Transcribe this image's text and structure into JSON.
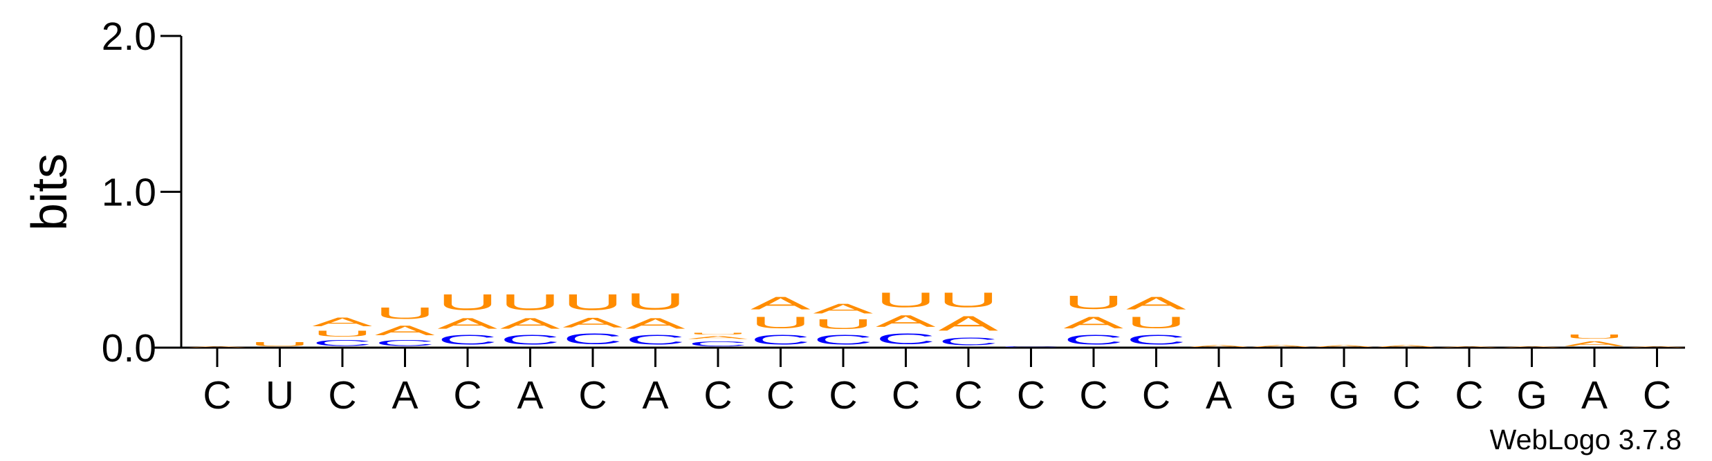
{
  "chart_data": {
    "type": "logo",
    "ylabel": "bits",
    "footer": "WebLogo 3.7.8",
    "ylim": [
      0,
      2
    ],
    "yticks": [
      {
        "value": 0,
        "label": "0.0"
      },
      {
        "value": 1,
        "label": "1.0"
      },
      {
        "value": 2,
        "label": "2.0"
      }
    ],
    "colors": {
      "A": "#ff8c00",
      "U": "#ff8c00",
      "C": "#0000ff"
    },
    "categories": [
      "C",
      "U",
      "C",
      "A",
      "C",
      "A",
      "C",
      "A",
      "C",
      "C",
      "C",
      "C",
      "C",
      "C",
      "C",
      "C",
      "A",
      "G",
      "G",
      "C",
      "C",
      "G",
      "A",
      "C"
    ],
    "stacks": [
      [
        {
          "letter": "A",
          "value": 0.01
        }
      ],
      [
        {
          "letter": "U",
          "value": 0.04
        }
      ],
      [
        {
          "letter": "C",
          "value": 0.06
        },
        {
          "letter": "U",
          "value": 0.06
        },
        {
          "letter": "A",
          "value": 0.09
        }
      ],
      [
        {
          "letter": "C",
          "value": 0.06
        },
        {
          "letter": "A",
          "value": 0.1
        },
        {
          "letter": "U",
          "value": 0.12
        }
      ],
      [
        {
          "letter": "C",
          "value": 0.1
        },
        {
          "letter": "A",
          "value": 0.11
        },
        {
          "letter": "U",
          "value": 0.16
        }
      ],
      [
        {
          "letter": "C",
          "value": 0.1
        },
        {
          "letter": "A",
          "value": 0.11
        },
        {
          "letter": "U",
          "value": 0.16
        }
      ],
      [
        {
          "letter": "C",
          "value": 0.11
        },
        {
          "letter": "A",
          "value": 0.1
        },
        {
          "letter": "U",
          "value": 0.16
        }
      ],
      [
        {
          "letter": "C",
          "value": 0.1
        },
        {
          "letter": "A",
          "value": 0.11
        },
        {
          "letter": "U",
          "value": 0.17
        }
      ],
      [
        {
          "letter": "C",
          "value": 0.05
        },
        {
          "letter": "A",
          "value": 0.03
        },
        {
          "letter": "U",
          "value": 0.02
        }
      ],
      [
        {
          "letter": "C",
          "value": 0.1
        },
        {
          "letter": "U",
          "value": 0.12
        },
        {
          "letter": "A",
          "value": 0.13
        }
      ],
      [
        {
          "letter": "C",
          "value": 0.1
        },
        {
          "letter": "U",
          "value": 0.1
        },
        {
          "letter": "A",
          "value": 0.1
        }
      ],
      [
        {
          "letter": "C",
          "value": 0.11
        },
        {
          "letter": "A",
          "value": 0.12
        },
        {
          "letter": "U",
          "value": 0.15
        }
      ],
      [
        {
          "letter": "C",
          "value": 0.08
        },
        {
          "letter": "A",
          "value": 0.15
        },
        {
          "letter": "U",
          "value": 0.15
        }
      ],
      [
        {
          "letter": "C",
          "value": 0.01
        }
      ],
      [
        {
          "letter": "C",
          "value": 0.1
        },
        {
          "letter": "A",
          "value": 0.12
        },
        {
          "letter": "U",
          "value": 0.14
        }
      ],
      [
        {
          "letter": "C",
          "value": 0.1
        },
        {
          "letter": "U",
          "value": 0.12
        },
        {
          "letter": "A",
          "value": 0.13
        }
      ],
      [
        {
          "letter": "A",
          "value": 0.02
        }
      ],
      [
        {
          "letter": "A",
          "value": 0.02
        }
      ],
      [
        {
          "letter": "A",
          "value": 0.02
        }
      ],
      [
        {
          "letter": "A",
          "value": 0.02
        }
      ],
      [
        {
          "letter": "A",
          "value": 0.01
        }
      ],
      [
        {
          "letter": "A",
          "value": 0.01
        }
      ],
      [
        {
          "letter": "A",
          "value": 0.05
        },
        {
          "letter": "U",
          "value": 0.04
        }
      ],
      [
        {
          "letter": "A",
          "value": 0.01
        }
      ]
    ]
  }
}
